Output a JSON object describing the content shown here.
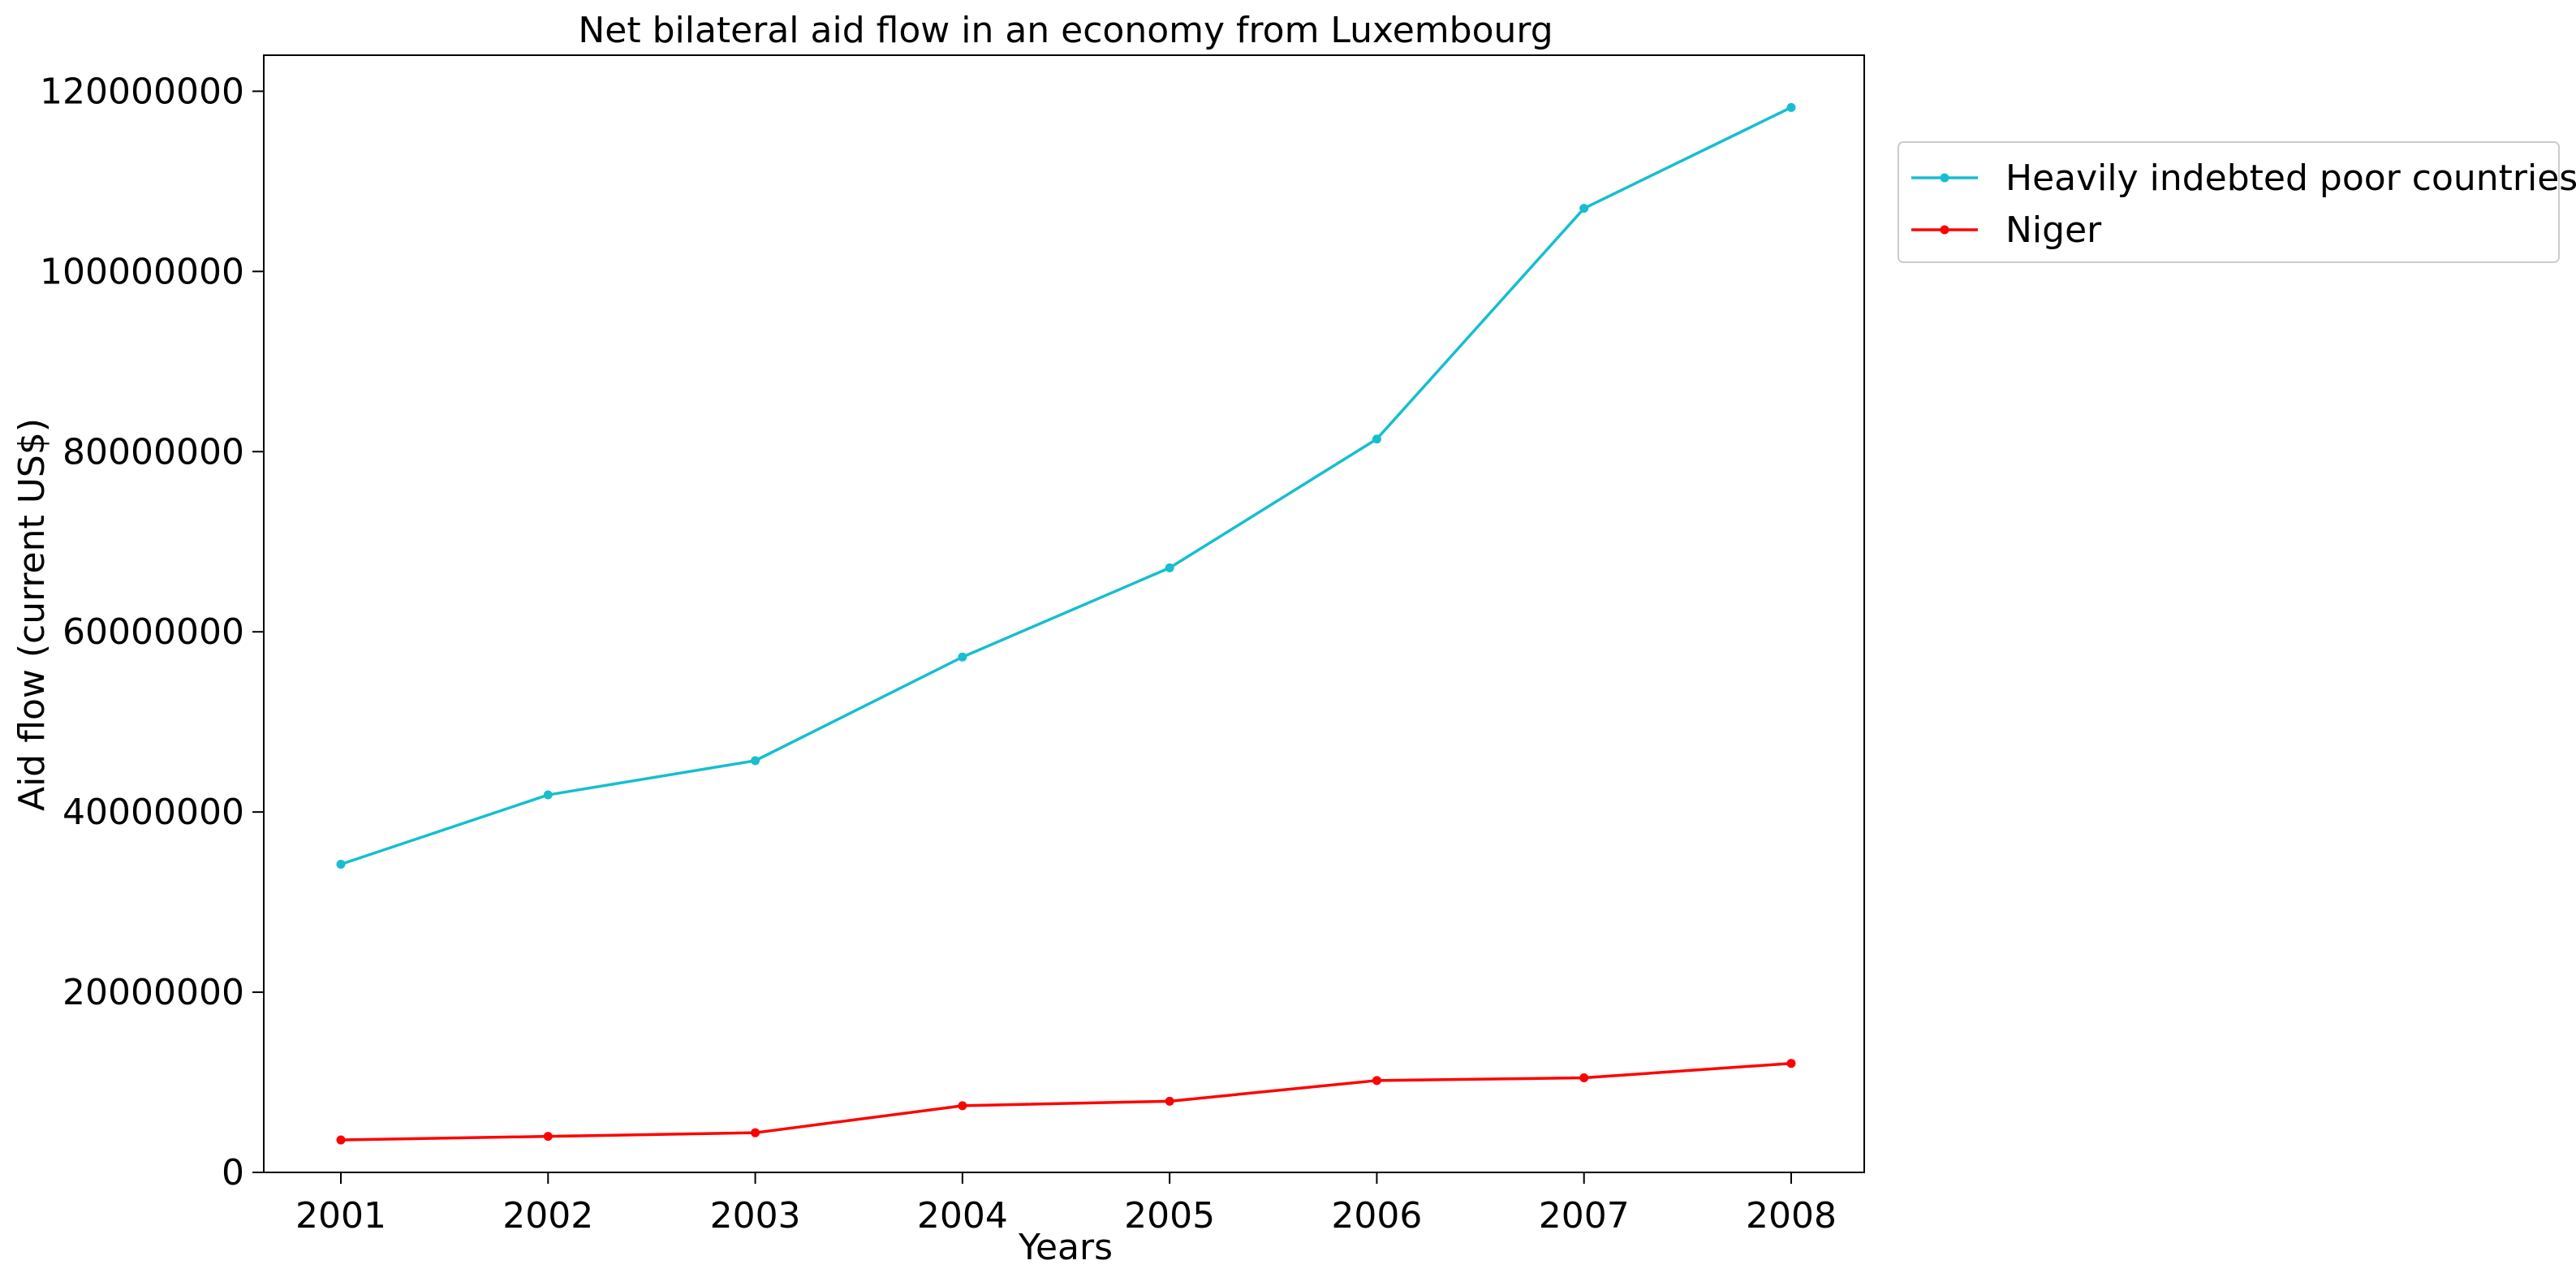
{
  "chart_data": {
    "type": "line",
    "title": "Net bilateral aid flow in an economy from Luxembourg",
    "xlabel": "Years",
    "ylabel": "Aid flow (current US$)",
    "categories": [
      "2001",
      "2002",
      "2003",
      "2004",
      "2005",
      "2006",
      "2007",
      "2008"
    ],
    "ylim": [
      0,
      124000000
    ],
    "yticks": [
      0,
      20000000,
      40000000,
      60000000,
      80000000,
      100000000,
      120000000
    ],
    "ytick_labels": [
      "0",
      "20000000",
      "40000000",
      "60000000",
      "80000000",
      "100000000",
      "120000000"
    ],
    "grid": false,
    "legend_position": "outside-top-right",
    "series": [
      {
        "name": "Heavily indebted poor countries",
        "color": "#17becf",
        "values": [
          34200000,
          41900000,
          45700000,
          57200000,
          67100000,
          81400000,
          107000000,
          118200000
        ]
      },
      {
        "name": "Niger",
        "color": "#ff0000",
        "values": [
          3600000,
          4000000,
          4400000,
          7400000,
          7900000,
          10200000,
          10500000,
          12100000
        ]
      }
    ]
  }
}
